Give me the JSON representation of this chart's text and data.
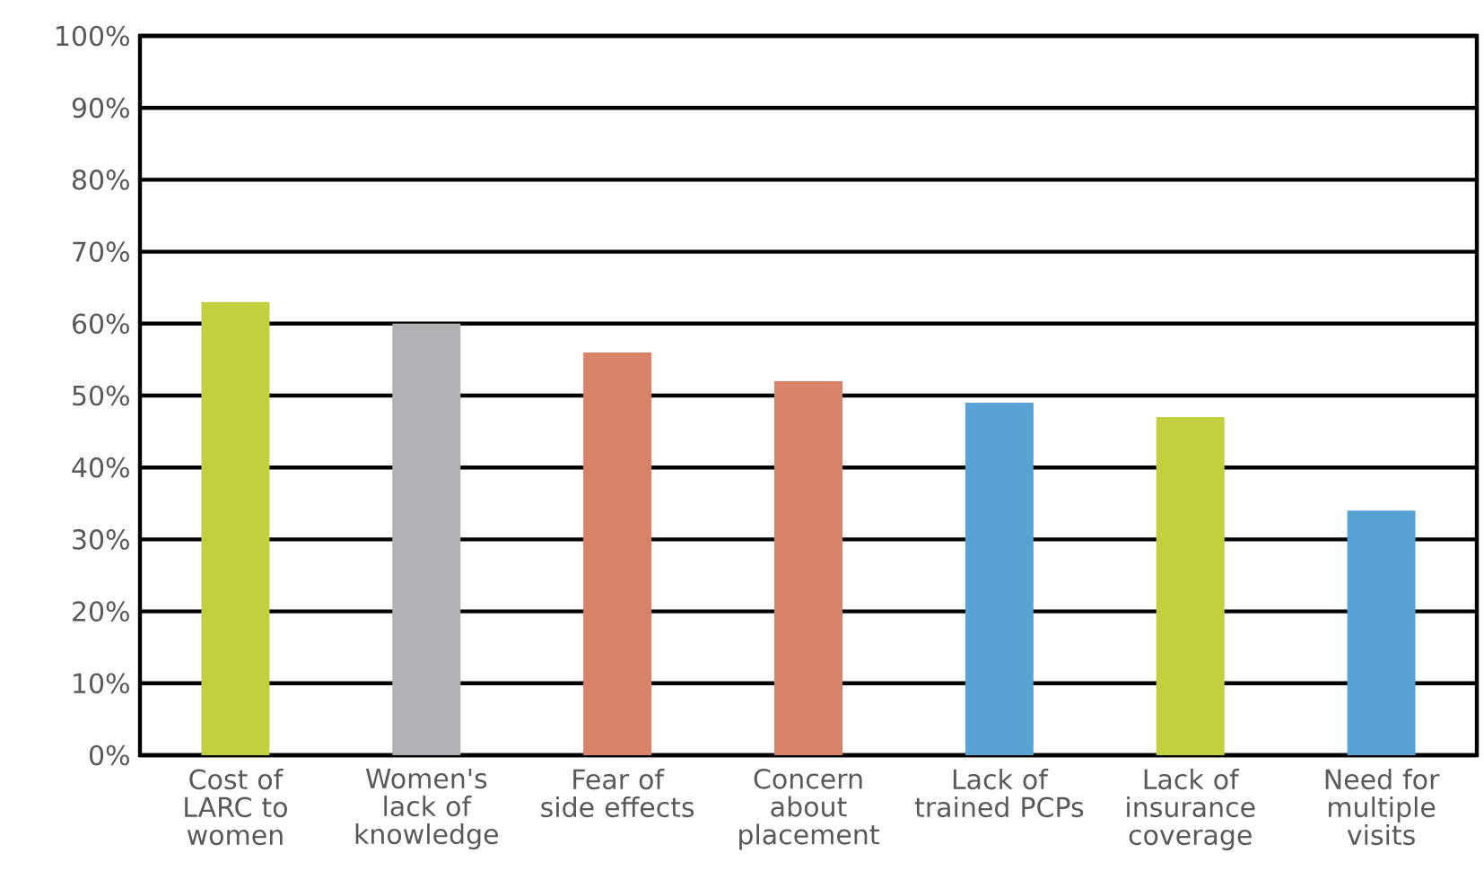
{
  "chart_data": {
    "type": "bar",
    "categories": [
      "Cost of LARC to women",
      "Women's lack of knowledge",
      "Fear of side effects",
      "Concern about placement",
      "Lack of trained PCPs",
      "Lack of insurance coverage",
      "Need for multiple visits"
    ],
    "values": [
      63,
      60,
      56,
      52,
      49,
      47,
      34
    ],
    "colors": [
      "#c2cf3f",
      "#b0b1b4",
      "#d9826a",
      "#d9826a",
      "#58a2d4",
      "#c2cf3f",
      "#58a2d4"
    ],
    "ylim": [
      0,
      100
    ],
    "yticks": [
      {
        "value": 0,
        "label": "0%"
      },
      {
        "value": 10,
        "label": "10%"
      },
      {
        "value": 20,
        "label": "20%"
      },
      {
        "value": 30,
        "label": "30%"
      },
      {
        "value": 40,
        "label": "40%"
      },
      {
        "value": 50,
        "label": "50%"
      },
      {
        "value": 60,
        "label": "60%"
      },
      {
        "value": 70,
        "label": "70%"
      },
      {
        "value": 80,
        "label": "80%"
      },
      {
        "value": 90,
        "label": "90%"
      },
      {
        "value": 100,
        "label": "100%"
      }
    ],
    "grid": "y"
  }
}
